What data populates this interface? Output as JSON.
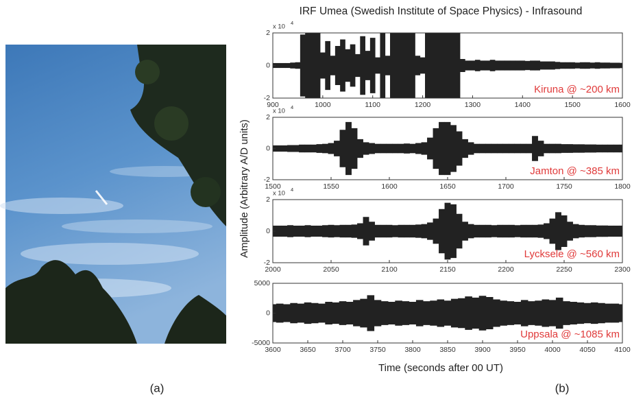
{
  "figure": {
    "title": "IRF Umea (Swedish Institute of Space Physics) - Infrasound",
    "y_label": "Amplitude (Arbitrary A/D units)",
    "x_label": "Time (seconds after 00 UT)",
    "panel_labels": [
      "(a)",
      "(b)"
    ]
  },
  "chart_data": [
    {
      "type": "waveform",
      "station": "Kiruna @ ~200 km",
      "scale_label": "x 10",
      "scale_exponent": "4",
      "color": "#222222",
      "label_color": "#e03a3a",
      "xlim": [
        900,
        1600
      ],
      "xticks": [
        900,
        1000,
        1100,
        1200,
        1300,
        1400,
        1500,
        1600
      ],
      "ylim": [
        -2,
        2
      ],
      "yticks": [
        -2,
        0,
        2
      ],
      "x": [
        900,
        910,
        920,
        930,
        940,
        950,
        960,
        970,
        980,
        990,
        1000,
        1010,
        1020,
        1030,
        1040,
        1050,
        1060,
        1070,
        1080,
        1090,
        1100,
        1110,
        1120,
        1130,
        1140,
        1150,
        1160,
        1170,
        1180,
        1190,
        1200,
        1210,
        1220,
        1230,
        1240,
        1250,
        1260,
        1270,
        1280,
        1290,
        1300,
        1310,
        1320,
        1330,
        1340,
        1350,
        1360,
        1370,
        1380,
        1390,
        1400,
        1410,
        1420,
        1430,
        1440,
        1450,
        1460,
        1470,
        1480,
        1490,
        1500,
        1510,
        1520,
        1530,
        1540,
        1550,
        1560,
        1570,
        1580,
        1590,
        1600
      ],
      "values": [
        0.15,
        0.15,
        0.15,
        0.15,
        0.18,
        0.2,
        1.9,
        2,
        2,
        2,
        0.8,
        1.5,
        0.6,
        1.2,
        1.6,
        1.0,
        1.3,
        0.7,
        1.8,
        0.9,
        1.7,
        0.5,
        2,
        0.6,
        2,
        2,
        2,
        2,
        2,
        0.6,
        0.5,
        2,
        2,
        2,
        2,
        2,
        2,
        2,
        0.4,
        0.3,
        0.3,
        0.35,
        0.3,
        0.3,
        0.35,
        0.3,
        0.3,
        0.3,
        0.3,
        0.3,
        0.3,
        0.28,
        0.3,
        0.3,
        0.25,
        0.25,
        0.25,
        0.22,
        0.2,
        0.2,
        0.2,
        0.18,
        0.2,
        0.2,
        0.18,
        0.2,
        0.18,
        0.18,
        0.17,
        0.17,
        0.16
      ]
    },
    {
      "type": "waveform",
      "station": "Jamton @ ~385 km",
      "scale_label": "x 10",
      "scale_exponent": "4",
      "color": "#222222",
      "label_color": "#e03a3a",
      "xlim": [
        1500,
        1800
      ],
      "xticks": [
        1500,
        1550,
        1600,
        1650,
        1700,
        1750,
        1800
      ],
      "ylim": [
        -2,
        2
      ],
      "yticks": [
        -2,
        0,
        2
      ],
      "x": [
        1500,
        1505,
        1510,
        1515,
        1520,
        1525,
        1530,
        1535,
        1540,
        1545,
        1550,
        1555,
        1560,
        1565,
        1570,
        1575,
        1580,
        1585,
        1590,
        1595,
        1600,
        1605,
        1610,
        1615,
        1620,
        1625,
        1630,
        1635,
        1640,
        1645,
        1650,
        1655,
        1660,
        1665,
        1670,
        1675,
        1680,
        1685,
        1690,
        1695,
        1700,
        1705,
        1710,
        1715,
        1720,
        1725,
        1730,
        1735,
        1740,
        1745,
        1750,
        1755,
        1760,
        1765,
        1770,
        1775,
        1780,
        1785,
        1790,
        1795,
        1800
      ],
      "values": [
        0.2,
        0.2,
        0.2,
        0.22,
        0.22,
        0.25,
        0.25,
        0.25,
        0.28,
        0.3,
        0.35,
        0.5,
        1.2,
        1.7,
        1.3,
        0.6,
        0.4,
        0.35,
        0.3,
        0.3,
        0.3,
        0.3,
        0.3,
        0.32,
        0.3,
        0.35,
        0.4,
        0.7,
        1.3,
        1.7,
        1.7,
        1.5,
        1.1,
        0.6,
        0.4,
        0.3,
        0.3,
        0.3,
        0.3,
        0.3,
        0.3,
        0.3,
        0.3,
        0.3,
        0.3,
        0.8,
        0.5,
        0.3,
        0.3,
        0.3,
        0.28,
        0.28,
        0.27,
        0.27,
        0.26,
        0.26,
        0.25,
        0.25,
        0.25,
        0.25,
        0.25
      ]
    },
    {
      "type": "waveform",
      "station": "Lycksele @ ~560 km",
      "scale_label": "x 10",
      "scale_exponent": "4",
      "color": "#222222",
      "label_color": "#e03a3a",
      "xlim": [
        2000,
        2300
      ],
      "xticks": [
        2000,
        2050,
        2100,
        2150,
        2200,
        2250,
        2300
      ],
      "ylim": [
        -2,
        2
      ],
      "yticks": [
        -2,
        0,
        2
      ],
      "x": [
        2000,
        2005,
        2010,
        2015,
        2020,
        2025,
        2030,
        2035,
        2040,
        2045,
        2050,
        2055,
        2060,
        2065,
        2070,
        2075,
        2080,
        2085,
        2090,
        2095,
        2100,
        2105,
        2110,
        2115,
        2120,
        2125,
        2130,
        2135,
        2140,
        2145,
        2150,
        2155,
        2160,
        2165,
        2170,
        2175,
        2180,
        2185,
        2190,
        2195,
        2200,
        2205,
        2210,
        2215,
        2220,
        2225,
        2230,
        2235,
        2240,
        2245,
        2250,
        2255,
        2260,
        2265,
        2270,
        2275,
        2280,
        2285,
        2290,
        2295,
        2300
      ],
      "values": [
        0.35,
        0.35,
        0.35,
        0.38,
        0.35,
        0.35,
        0.38,
        0.35,
        0.35,
        0.38,
        0.4,
        0.38,
        0.4,
        0.4,
        0.42,
        0.5,
        0.9,
        0.6,
        0.4,
        0.4,
        0.4,
        0.38,
        0.4,
        0.4,
        0.4,
        0.42,
        0.45,
        0.55,
        0.8,
        1.4,
        1.8,
        1.7,
        1.1,
        0.6,
        0.45,
        0.4,
        0.4,
        0.4,
        0.38,
        0.4,
        0.4,
        0.4,
        0.38,
        0.4,
        0.4,
        0.4,
        0.42,
        0.5,
        0.8,
        1.2,
        1.0,
        0.6,
        0.45,
        0.4,
        0.38,
        0.38,
        0.36,
        0.36,
        0.35,
        0.35,
        0.35
      ]
    },
    {
      "type": "waveform",
      "station": "Uppsala @ ~1085 km",
      "color": "#222222",
      "label_color": "#e03a3a",
      "xlim": [
        3600,
        4100
      ],
      "xticks": [
        3600,
        3650,
        3700,
        3750,
        3800,
        3850,
        3900,
        3950,
        4000,
        4050,
        4100
      ],
      "ylim": [
        -5000,
        5000
      ],
      "yticks": [
        -5000,
        0,
        5000
      ],
      "x": [
        3600,
        3610,
        3620,
        3630,
        3640,
        3650,
        3660,
        3670,
        3680,
        3690,
        3700,
        3710,
        3720,
        3730,
        3740,
        3750,
        3760,
        3770,
        3780,
        3790,
        3800,
        3810,
        3820,
        3830,
        3840,
        3850,
        3860,
        3870,
        3880,
        3890,
        3900,
        3910,
        3920,
        3930,
        3940,
        3950,
        3960,
        3970,
        3980,
        3990,
        4000,
        4010,
        4020,
        4030,
        4040,
        4050,
        4060,
        4070,
        4080,
        4090,
        4100
      ],
      "values": [
        1500,
        1600,
        1500,
        1700,
        1600,
        1800,
        1700,
        1600,
        1900,
        1800,
        2000,
        1900,
        2200,
        2400,
        3000,
        2200,
        2000,
        1900,
        2100,
        2000,
        1900,
        2200,
        2000,
        2100,
        2300,
        2100,
        2400,
        2500,
        2800,
        2600,
        2900,
        2700,
        2300,
        2100,
        2000,
        1900,
        2200,
        2000,
        2100,
        2300,
        2200,
        2600,
        2000,
        1900,
        1800,
        1700,
        1800,
        1700,
        1600,
        1600,
        1500
      ]
    }
  ]
}
